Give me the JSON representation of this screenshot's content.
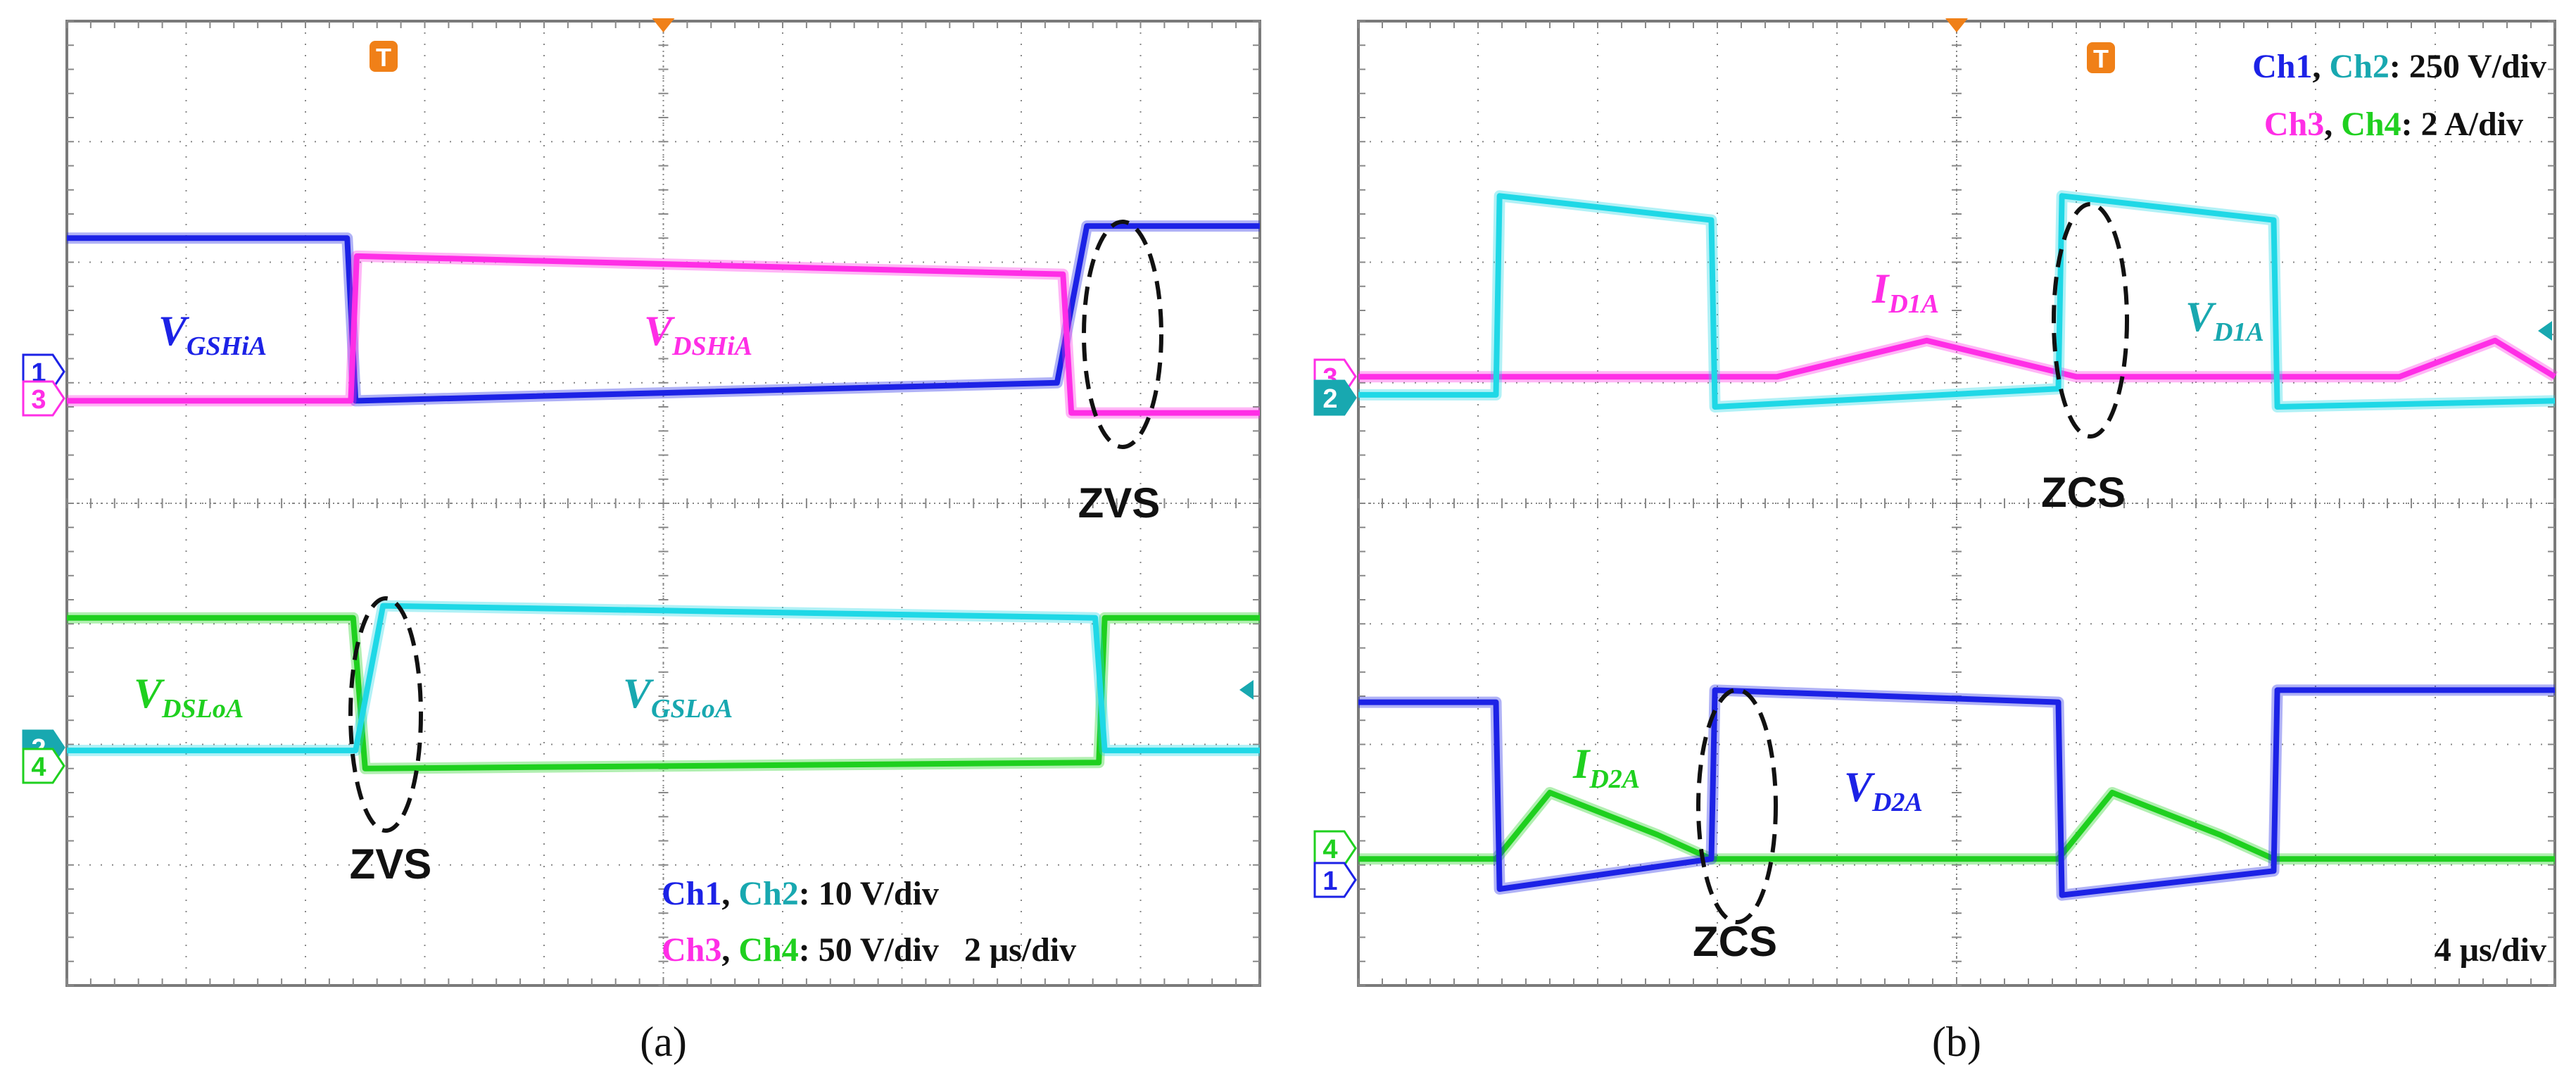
{
  "colors": {
    "ch1": "#1c22e6",
    "ch2": "#1fd8e6",
    "ch3": "#ff2ee6",
    "ch4": "#1fd01f",
    "ch2_label": "#18a8b0",
    "grid": "#888888",
    "frame": "#7a7a7a",
    "trigger": "#f08018"
  },
  "panels": [
    {
      "caption": "(a)",
      "scale_lines": [
        {
          "parts": [
            {
              "text": "Ch1",
              "color": "ch1"
            },
            {
              "text": ", ",
              "color": "black"
            },
            {
              "text": "Ch2",
              "color": "ch2_label"
            },
            {
              "text": ": 10 V/div",
              "color": "black"
            }
          ]
        },
        {
          "parts": [
            {
              "text": "Ch3",
              "color": "ch3"
            },
            {
              "text": ", ",
              "color": "black"
            },
            {
              "text": "Ch4",
              "color": "ch4"
            },
            {
              "text": ": 50 V/div   2 μs/div",
              "color": "black"
            }
          ]
        }
      ],
      "channel_markers": [
        {
          "text": "1",
          "color": "ch1"
        },
        {
          "text": "3",
          "color": "ch3"
        },
        {
          "text": "2",
          "color": "ch2_label"
        },
        {
          "text": "4",
          "color": "ch4"
        }
      ],
      "trigger_label": "T",
      "signal_labels": [
        {
          "main": "V",
          "sub": "GSHiA",
          "color": "ch1"
        },
        {
          "main": "V",
          "sub": "DSHiA",
          "color": "ch3"
        },
        {
          "main": "V",
          "sub": "DSLoA",
          "color": "ch4"
        },
        {
          "main": "V",
          "sub": "GSLoA",
          "color": "ch2_label"
        }
      ],
      "annotations": [
        "ZVS",
        "ZVS"
      ]
    },
    {
      "caption": "(b)",
      "scale_lines": [
        {
          "parts": [
            {
              "text": "Ch1",
              "color": "ch1"
            },
            {
              "text": ", ",
              "color": "black"
            },
            {
              "text": "Ch2",
              "color": "ch2_label"
            },
            {
              "text": ": 250 V/div",
              "color": "black"
            }
          ]
        },
        {
          "parts": [
            {
              "text": "Ch3",
              "color": "ch3"
            },
            {
              "text": ", ",
              "color": "black"
            },
            {
              "text": "Ch4",
              "color": "ch4"
            },
            {
              "text": ": 2 A/div",
              "color": "black"
            }
          ]
        }
      ],
      "time_scale": "4 μs/div",
      "channel_markers": [
        {
          "text": "3",
          "color": "ch3"
        },
        {
          "text": "2",
          "color": "ch2_label"
        },
        {
          "text": "4",
          "color": "ch4"
        },
        {
          "text": "1",
          "color": "ch1"
        }
      ],
      "trigger_label": "T",
      "signal_labels": [
        {
          "main": "I",
          "sub": "D1A",
          "color": "ch3"
        },
        {
          "main": "V",
          "sub": "D1A",
          "color": "ch2_label"
        },
        {
          "main": "I",
          "sub": "D2A",
          "color": "ch4"
        },
        {
          "main": "V",
          "sub": "D2A",
          "color": "ch1"
        }
      ],
      "annotations": [
        "ZCS",
        "ZCS"
      ]
    }
  ],
  "chart_data": [
    {
      "type": "line",
      "x_unit": "div",
      "y_unit": "div",
      "xlim": [
        0,
        10
      ],
      "ylim": [
        0,
        8
      ],
      "grid": true,
      "series": [
        {
          "name": "VGSHiA",
          "channel": "ch1",
          "x": [
            0,
            2.35,
            2.42,
            8.3,
            8.55,
            10
          ],
          "y": [
            6.2,
            6.2,
            4.85,
            5.0,
            6.3,
            6.3
          ]
        },
        {
          "name": "VDSHiA",
          "channel": "ch3",
          "x": [
            0,
            2.38,
            2.43,
            8.35,
            8.42,
            10
          ],
          "y": [
            4.85,
            4.85,
            6.05,
            5.9,
            4.75,
            4.75
          ]
        },
        {
          "name": "VDSLoA",
          "channel": "ch4",
          "x": [
            0,
            2.4,
            2.5,
            8.65,
            8.7,
            10
          ],
          "y": [
            3.05,
            3.05,
            1.8,
            1.85,
            3.05,
            3.05
          ]
        },
        {
          "name": "VGSLoA",
          "channel": "ch2",
          "x": [
            0,
            2.42,
            2.65,
            8.62,
            8.7,
            10
          ],
          "y": [
            1.95,
            1.95,
            3.15,
            3.05,
            1.95,
            1.95
          ]
        }
      ]
    },
    {
      "type": "line",
      "x_unit": "div",
      "y_unit": "div",
      "xlim": [
        0,
        10
      ],
      "ylim": [
        0,
        8
      ],
      "grid": true,
      "series": [
        {
          "name": "ID1A",
          "channel": "ch3",
          "x": [
            0,
            3.0,
            3.5,
            4.75,
            6.0,
            8.2,
            8.7,
            9.5,
            10
          ],
          "y": [
            5.05,
            5.05,
            5.05,
            5.35,
            5.05,
            5.05,
            5.05,
            5.35,
            5.05
          ]
        },
        {
          "name": "VD1A",
          "channel": "ch2",
          "x": [
            0,
            1.15,
            1.18,
            2.95,
            2.98,
            5.85,
            5.88,
            7.65,
            7.68,
            10
          ],
          "y": [
            4.9,
            4.9,
            6.55,
            6.35,
            4.8,
            4.95,
            6.55,
            6.35,
            4.8,
            4.85
          ]
        },
        {
          "name": "ID2A",
          "channel": "ch4",
          "x": [
            0,
            1.15,
            1.6,
            2.5,
            2.95,
            5.85,
            6.3,
            7.2,
            7.65,
            10
          ],
          "y": [
            1.05,
            1.05,
            1.6,
            1.25,
            1.05,
            1.05,
            1.6,
            1.25,
            1.05,
            1.05
          ]
        },
        {
          "name": "VD2A",
          "channel": "ch1",
          "x": [
            0,
            1.15,
            1.18,
            2.95,
            2.98,
            5.85,
            5.88,
            7.65,
            7.68,
            10
          ],
          "y": [
            2.35,
            2.35,
            0.8,
            1.05,
            2.45,
            2.35,
            0.75,
            0.95,
            2.45,
            2.45
          ]
        }
      ]
    }
  ]
}
